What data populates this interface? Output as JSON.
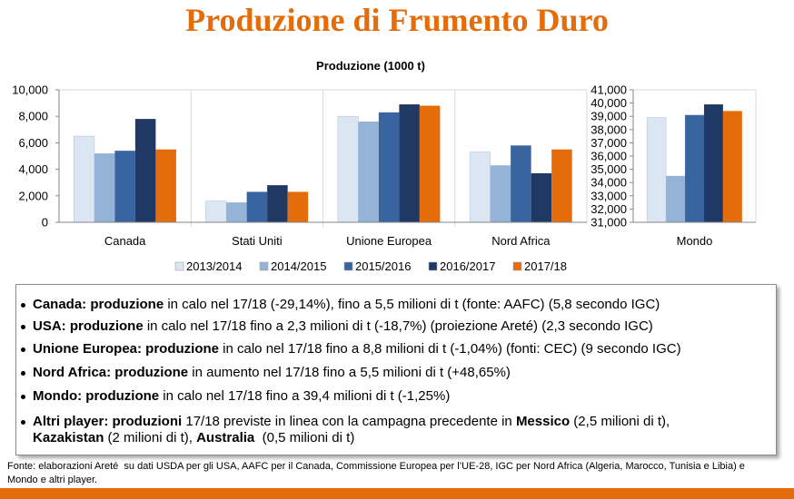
{
  "title": "Produzione di Frumento Duro",
  "theme": {
    "accent": "#e46c0a"
  },
  "chart_data": {
    "type": "bar",
    "title": "Produzione (1000 t)",
    "categories": [
      "Canada",
      "Stati Uniti",
      "Unione Europea",
      "Nord Africa",
      "Mondo"
    ],
    "series": [
      {
        "name": "2013/2014",
        "color": "#dce6f2",
        "values": [
          6500,
          1600,
          8000,
          5300,
          38900
        ]
      },
      {
        "name": "2014/2015",
        "color": "#95b3d7",
        "values": [
          5200,
          1500,
          7600,
          4300,
          34500
        ]
      },
      {
        "name": "2015/2016",
        "color": "#3865a0",
        "values": [
          5400,
          2300,
          8300,
          5800,
          39100
        ]
      },
      {
        "name": "2016/2017",
        "color": "#1f3864",
        "values": [
          7800,
          2800,
          8900,
          3700,
          39900
        ]
      },
      {
        "name": "2017/18",
        "color": "#e46c0a",
        "values": [
          5500,
          2300,
          8800,
          5500,
          39400
        ]
      }
    ],
    "y_axes": [
      {
        "category_indices": [
          0,
          1,
          2,
          3
        ],
        "ylim": [
          0,
          10000
        ],
        "tick_values": [
          0,
          2000,
          4000,
          6000,
          8000,
          10000
        ],
        "tick_labels": [
          "0",
          "2,000",
          "4,000",
          "6,000",
          "8,000",
          "10,000"
        ]
      },
      {
        "category_indices": [
          4
        ],
        "ylim": [
          31000,
          41000
        ],
        "tick_values": [
          31000,
          32000,
          33000,
          34000,
          35000,
          36000,
          37000,
          38000,
          39000,
          40000,
          41000
        ],
        "tick_labels": [
          "31,000",
          "32,000",
          "33,000",
          "34,000",
          "35,000",
          "36,000",
          "37,000",
          "38,000",
          "39,000",
          "40,000",
          "41,000"
        ]
      }
    ],
    "grid": false,
    "legend": "bottom"
  },
  "bullets": [
    {
      "lines": [
        [
          {
            "text": "Canada: produzione",
            "bold": true
          },
          {
            "text": " in calo nel 17/18 (-29,14%), fino a 5,5 milioni di t (fonte: AAFC) (5,8 secondo IGC)"
          }
        ]
      ]
    },
    {
      "lines": [
        [
          {
            "text": "USA: produzione",
            "bold": true
          },
          {
            "text": " in calo nel 17/18 fino a 2,3 milioni di t (-18,7%) (proiezione Areté) (2,3 secondo IGC)"
          }
        ]
      ]
    },
    {
      "lines": [
        [
          {
            "text": "Unione Europea: produzione",
            "bold": true
          },
          {
            "text": " in calo nel 17/18 fino a 8,8 milioni di t (-1,04%) (fonti: CEC) (9 secondo IGC)"
          }
        ]
      ]
    },
    {
      "lines": [
        [
          {
            "text": "Nord Africa: produzione",
            "bold": true
          },
          {
            "text": " in aumento nel 17/18 fino a 5,5 milioni di t (+48,65%)"
          }
        ]
      ]
    },
    {
      "lines": [
        [
          {
            "text": "Mondo: produzione",
            "bold": true
          },
          {
            "text": " in calo nel 17/18 fino a 39,4 milioni di t (-1,25%)"
          }
        ]
      ]
    },
    {
      "lines": [
        [
          {
            "text": "Altri player: produzioni",
            "bold": true
          },
          {
            "text": " 17/18 previste in linea con la campagna precedente in "
          },
          {
            "text": "Messico",
            "bold": true
          },
          {
            "text": " (2,5 milioni di t),"
          }
        ],
        [
          {
            "text": "Kazakistan",
            "bold": true
          },
          {
            "text": " (2 milioni di t), "
          },
          {
            "text": "Australia",
            "bold": true
          },
          {
            "text": "  (0,5 milioni di t)"
          }
        ]
      ]
    }
  ],
  "source": [
    "Fonte: elaborazioni Areté  su dati USDA per gli USA, AAFC per il Canada, Commissione Europea per l’UE-28, IGC per Nord Africa (Algeria, Marocco, Tunisia e Libia) e",
    "Mondo e altri player."
  ]
}
